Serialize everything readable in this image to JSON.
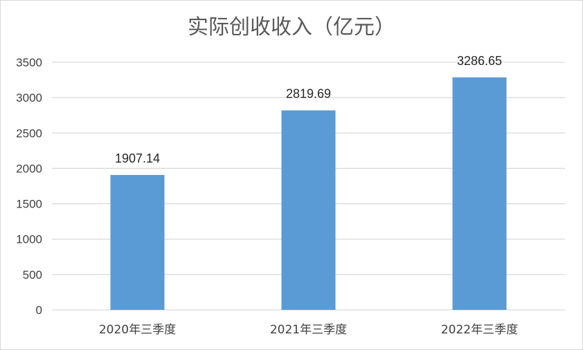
{
  "chart_data": {
    "type": "bar",
    "title": "实际创收收入（亿元）",
    "categories": [
      "2020年三季度",
      "2021年三季度",
      "2022年三季度"
    ],
    "values": [
      1907.14,
      2819.69,
      3286.65
    ],
    "value_labels": [
      "1907.14",
      "2819.69",
      "3286.65"
    ],
    "ylim": [
      0,
      3500
    ],
    "yticks": [
      0,
      500,
      1000,
      1500,
      2000,
      2500,
      3000,
      3500
    ],
    "ytick_labels": [
      "0",
      "500",
      "1000",
      "1500",
      "2000",
      "2500",
      "3000",
      "3500"
    ],
    "grid": true,
    "legend": "none",
    "bar_color": "#5b9bd5",
    "grid_color": "#d9d9d9"
  }
}
